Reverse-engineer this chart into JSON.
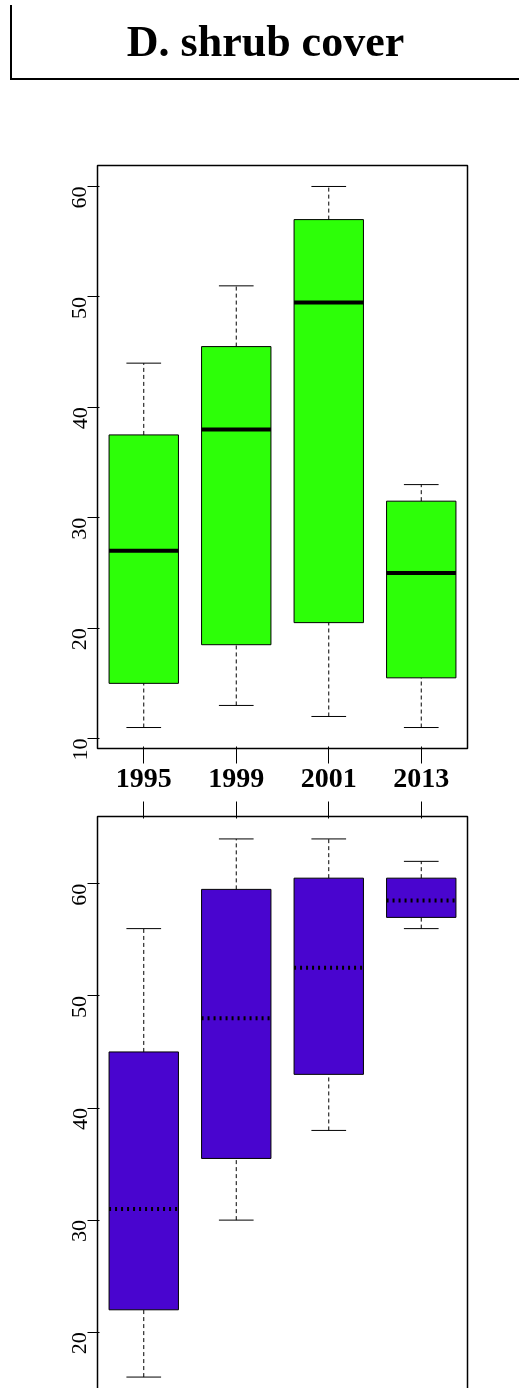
{
  "chart_data": [
    {
      "type": "box",
      "title": "D. shrub cover",
      "categories": [
        "1995",
        "1999",
        "2001",
        "2013"
      ],
      "ylim": [
        9.1,
        61.9
      ],
      "yticks": [
        10,
        20,
        30,
        40,
        50,
        60
      ],
      "grid": false,
      "line_style": "solid",
      "series": [
        {
          "color": "#2dff08",
          "boxes": [
            {
              "low": 11,
              "q1": 15,
              "median": 27,
              "q3": 37.5,
              "high": 44
            },
            {
              "low": 13,
              "q1": 18.5,
              "median": 38,
              "q3": 45.5,
              "high": 51
            },
            {
              "low": 12,
              "q1": 20.5,
              "median": 49.5,
              "q3": 57,
              "high": 60
            },
            {
              "low": 11,
              "q1": 15.5,
              "median": 25,
              "q3": 31.5,
              "high": 33
            }
          ]
        }
      ]
    },
    {
      "type": "box",
      "categories": [
        "1995",
        "1999",
        "2001",
        "2013"
      ],
      "ylim": [
        14,
        66
      ],
      "yticks": [
        20,
        30,
        40,
        50,
        60
      ],
      "grid": false,
      "line_style": "dotted",
      "tick_labels": "y",
      "series": [
        {
          "color": "#4905cf",
          "boxes": [
            {
              "low": 16,
              "q1": 22,
              "median": 31,
              "q3": 45,
              "high": 56
            },
            {
              "low": 30,
              "q1": 35.5,
              "median": 48,
              "q3": 59.5,
              "high": 64
            },
            {
              "low": 38,
              "q1": 43,
              "median": 52.5,
              "q3": 60.5,
              "high": 64
            },
            {
              "low": 56,
              "q1": 57,
              "median": 58.5,
              "q3": 60.5,
              "high": 62
            }
          ]
        }
      ]
    }
  ]
}
